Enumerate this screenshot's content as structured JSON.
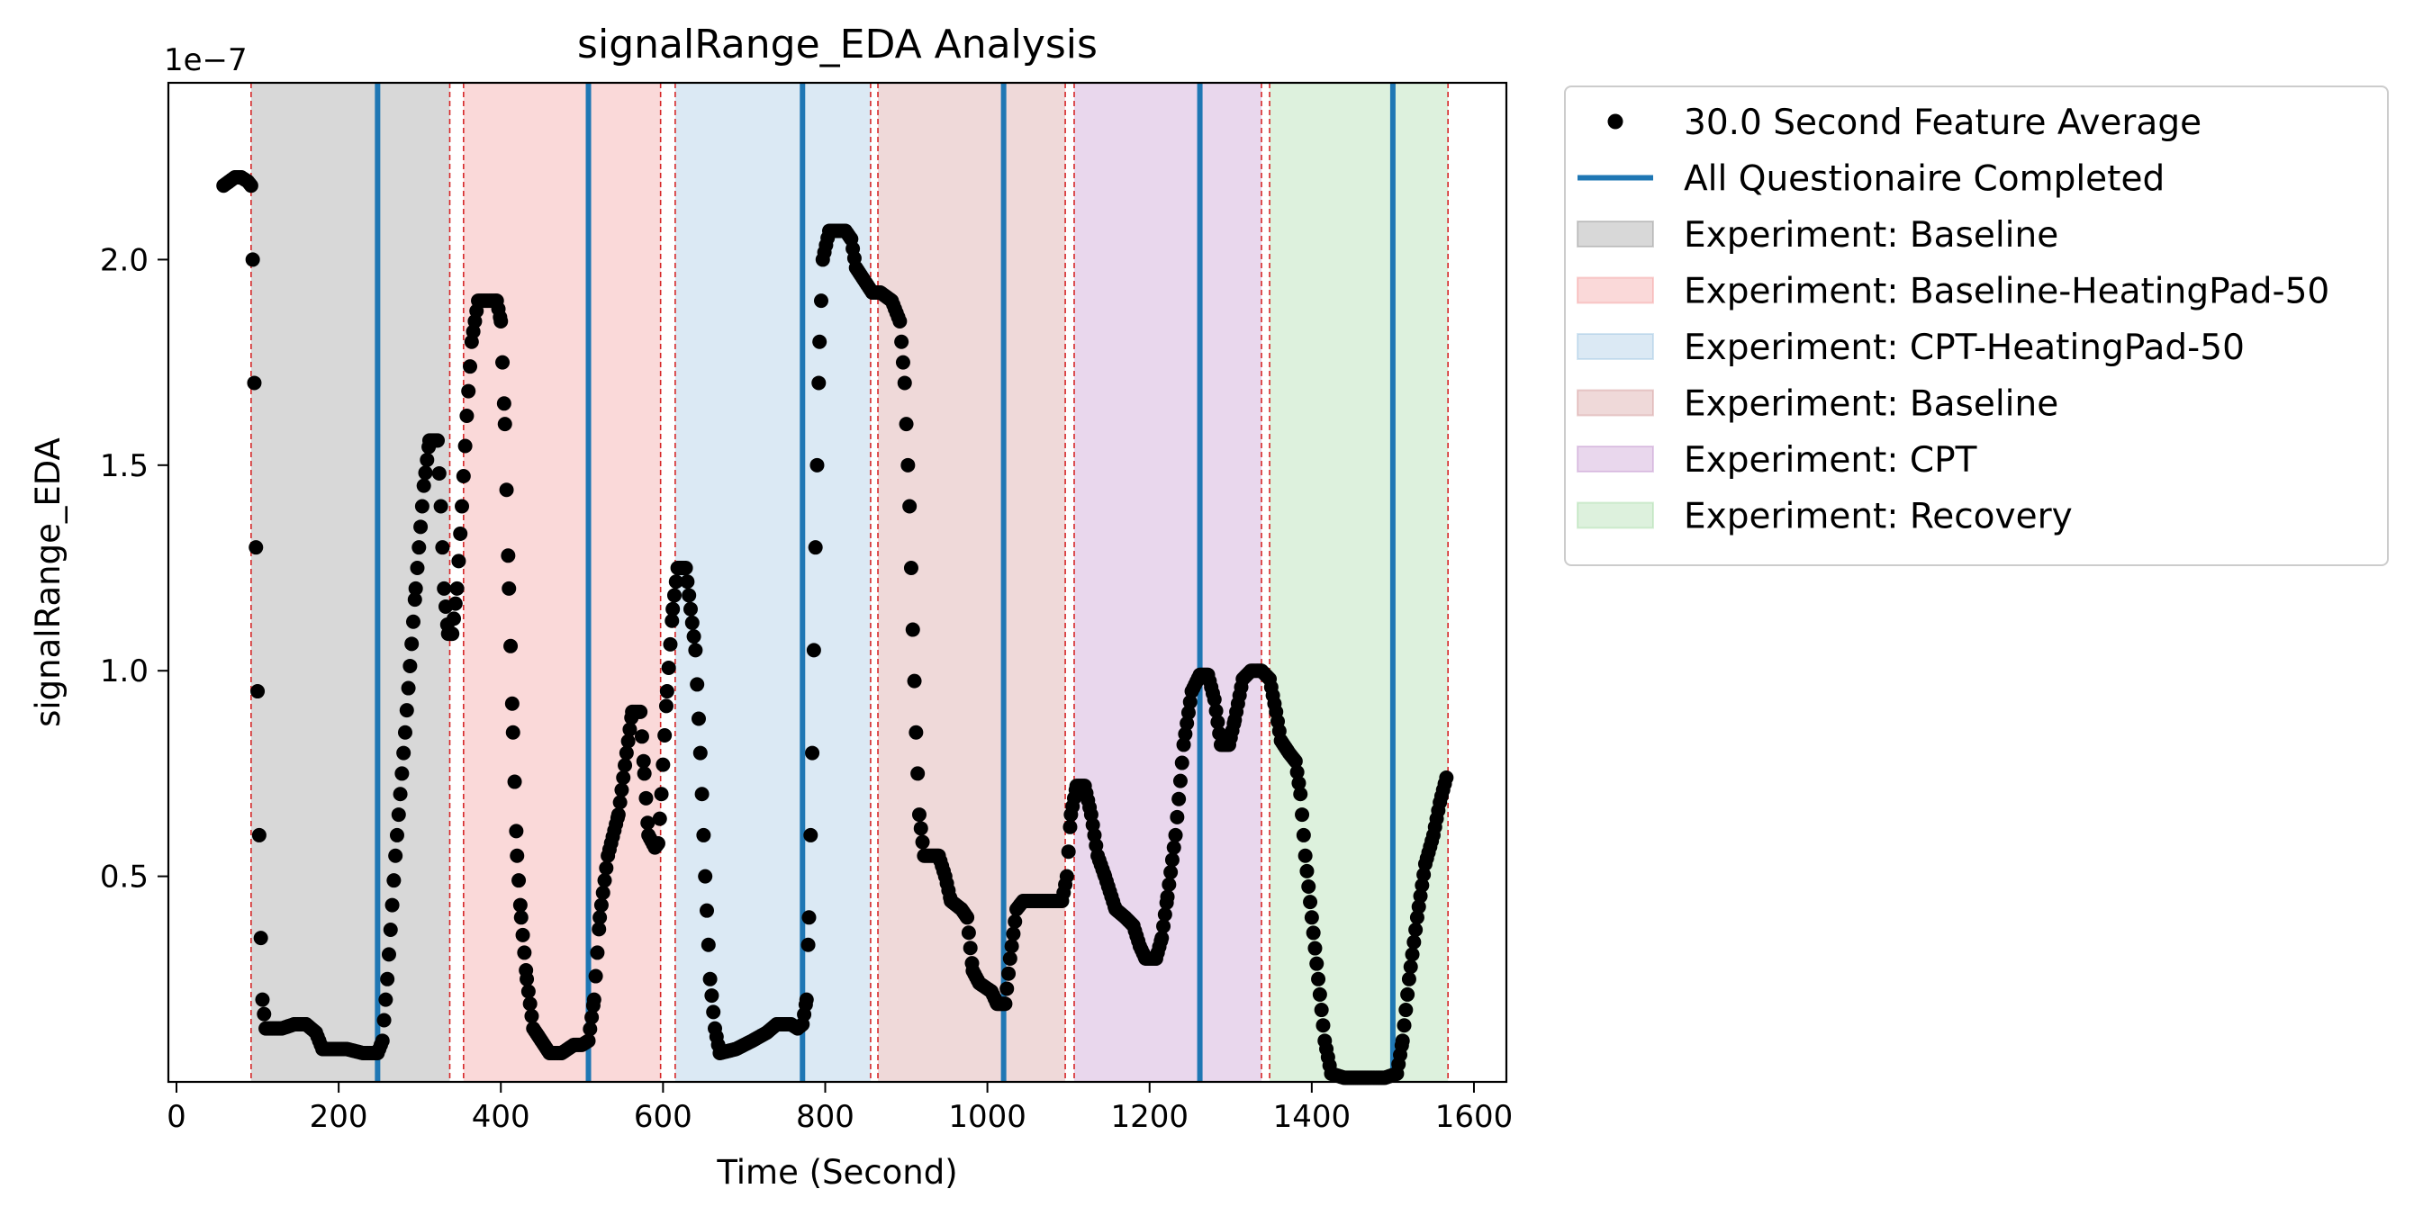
{
  "chart_data": {
    "type": "scatter",
    "title": "signalRange_EDA Analysis",
    "xlabel": "Time (Second)",
    "ylabel": "signalRange_EDA",
    "y_offset_text": "1e−7",
    "xlim": [
      -10,
      1640
    ],
    "ylim": [
      0.0,
      2.43
    ],
    "x_ticks": [
      0,
      200,
      400,
      600,
      800,
      1000,
      1200,
      1400,
      1600
    ],
    "y_ticks": [
      0.5,
      1.0,
      1.5,
      2.0
    ],
    "x_tick_labels": [
      "0",
      "200",
      "400",
      "600",
      "800",
      "1000",
      "1200",
      "1400",
      "1600"
    ],
    "y_tick_labels": [
      "0.5",
      "1.0",
      "1.5",
      "2.0"
    ],
    "colors": {
      "points": "#000000",
      "questionnaire_line": "#1f77b4",
      "boundary_line": "#d62728",
      "region_baseline_gray": "#7f7f7f",
      "region_heat": "#f08080",
      "region_cpt_heat": "#87b6d9",
      "region_baseline2": "#c98080",
      "region_cpt": "#b57bc4",
      "region_recovery": "#8fd18f"
    },
    "series": [
      {
        "name": "30.0 Second Feature Average",
        "anchors": [
          [
            58,
            2.18
          ],
          [
            65,
            2.19
          ],
          [
            72,
            2.2
          ],
          [
            80,
            2.2
          ],
          [
            88,
            2.19
          ],
          [
            92,
            2.18
          ],
          [
            94,
            2.0
          ],
          [
            96,
            1.7
          ],
          [
            98,
            1.3
          ],
          [
            100,
            0.95
          ],
          [
            102,
            0.6
          ],
          [
            104,
            0.35
          ],
          [
            106,
            0.2
          ],
          [
            110,
            0.13
          ],
          [
            130,
            0.13
          ],
          [
            145,
            0.14
          ],
          [
            160,
            0.14
          ],
          [
            172,
            0.12
          ],
          [
            180,
            0.08
          ],
          [
            210,
            0.08
          ],
          [
            230,
            0.07
          ],
          [
            248,
            0.07
          ],
          [
            254,
            0.1
          ],
          [
            260,
            0.25
          ],
          [
            270,
            0.55
          ],
          [
            282,
            0.85
          ],
          [
            295,
            1.2
          ],
          [
            305,
            1.45
          ],
          [
            312,
            1.56
          ],
          [
            322,
            1.56
          ],
          [
            326,
            1.4
          ],
          [
            330,
            1.2
          ],
          [
            335,
            1.09
          ],
          [
            340,
            1.09
          ],
          [
            346,
            1.2
          ],
          [
            352,
            1.4
          ],
          [
            358,
            1.62
          ],
          [
            364,
            1.8
          ],
          [
            372,
            1.9
          ],
          [
            395,
            1.9
          ],
          [
            400,
            1.85
          ],
          [
            405,
            1.6
          ],
          [
            410,
            1.2
          ],
          [
            415,
            0.85
          ],
          [
            420,
            0.55
          ],
          [
            425,
            0.4
          ],
          [
            432,
            0.25
          ],
          [
            440,
            0.13
          ],
          [
            450,
            0.1
          ],
          [
            460,
            0.07
          ],
          [
            475,
            0.07
          ],
          [
            490,
            0.09
          ],
          [
            500,
            0.09
          ],
          [
            508,
            0.1
          ],
          [
            515,
            0.2
          ],
          [
            522,
            0.4
          ],
          [
            532,
            0.55
          ],
          [
            545,
            0.65
          ],
          [
            555,
            0.8
          ],
          [
            562,
            0.9
          ],
          [
            572,
            0.9
          ],
          [
            577,
            0.75
          ],
          [
            582,
            0.6
          ],
          [
            590,
            0.57
          ],
          [
            594,
            0.58
          ],
          [
            598,
            0.7
          ],
          [
            605,
            0.95
          ],
          [
            612,
            1.15
          ],
          [
            618,
            1.25
          ],
          [
            628,
            1.25
          ],
          [
            634,
            1.15
          ],
          [
            640,
            1.05
          ],
          [
            646,
            0.8
          ],
          [
            652,
            0.5
          ],
          [
            658,
            0.25
          ],
          [
            664,
            0.13
          ],
          [
            670,
            0.07
          ],
          [
            690,
            0.08
          ],
          [
            710,
            0.1
          ],
          [
            728,
            0.12
          ],
          [
            740,
            0.14
          ],
          [
            758,
            0.14
          ],
          [
            766,
            0.13
          ],
          [
            772,
            0.14
          ],
          [
            777,
            0.2
          ],
          [
            780,
            0.4
          ],
          [
            784,
            0.8
          ],
          [
            788,
            1.3
          ],
          [
            793,
            1.8
          ],
          [
            797,
            2.0
          ],
          [
            805,
            2.07
          ],
          [
            825,
            2.07
          ],
          [
            832,
            2.05
          ],
          [
            838,
            1.98
          ],
          [
            848,
            1.95
          ],
          [
            858,
            1.92
          ],
          [
            868,
            1.92
          ],
          [
            882,
            1.9
          ],
          [
            892,
            1.85
          ],
          [
            898,
            1.7
          ],
          [
            904,
            1.4
          ],
          [
            908,
            1.1
          ],
          [
            912,
            0.85
          ],
          [
            916,
            0.65
          ],
          [
            922,
            0.55
          ],
          [
            940,
            0.55
          ],
          [
            948,
            0.5
          ],
          [
            955,
            0.44
          ],
          [
            968,
            0.42
          ],
          [
            975,
            0.4
          ],
          [
            982,
            0.27
          ],
          [
            990,
            0.24
          ],
          [
            1005,
            0.22
          ],
          [
            1012,
            0.19
          ],
          [
            1022,
            0.19
          ],
          [
            1028,
            0.3
          ],
          [
            1036,
            0.42
          ],
          [
            1044,
            0.44
          ],
          [
            1068,
            0.44
          ],
          [
            1080,
            0.44
          ],
          [
            1092,
            0.44
          ],
          [
            1098,
            0.5
          ],
          [
            1103,
            0.65
          ],
          [
            1110,
            0.72
          ],
          [
            1120,
            0.72
          ],
          [
            1128,
            0.65
          ],
          [
            1136,
            0.55
          ],
          [
            1145,
            0.5
          ],
          [
            1158,
            0.42
          ],
          [
            1170,
            0.4
          ],
          [
            1180,
            0.38
          ],
          [
            1188,
            0.33
          ],
          [
            1195,
            0.3
          ],
          [
            1208,
            0.3
          ],
          [
            1215,
            0.35
          ],
          [
            1222,
            0.45
          ],
          [
            1232,
            0.6
          ],
          [
            1242,
            0.82
          ],
          [
            1252,
            0.95
          ],
          [
            1262,
            0.99
          ],
          [
            1272,
            0.99
          ],
          [
            1280,
            0.93
          ],
          [
            1288,
            0.82
          ],
          [
            1298,
            0.82
          ],
          [
            1305,
            0.88
          ],
          [
            1315,
            0.98
          ],
          [
            1325,
            1.0
          ],
          [
            1338,
            1.0
          ],
          [
            1348,
            0.98
          ],
          [
            1356,
            0.9
          ],
          [
            1362,
            0.83
          ],
          [
            1372,
            0.8
          ],
          [
            1380,
            0.78
          ],
          [
            1386,
            0.7
          ],
          [
            1392,
            0.55
          ],
          [
            1400,
            0.4
          ],
          [
            1408,
            0.25
          ],
          [
            1416,
            0.1
          ],
          [
            1424,
            0.02
          ],
          [
            1440,
            0.01
          ],
          [
            1460,
            0.01
          ],
          [
            1478,
            0.01
          ],
          [
            1490,
            0.01
          ],
          [
            1505,
            0.02
          ],
          [
            1512,
            0.1
          ],
          [
            1520,
            0.25
          ],
          [
            1530,
            0.4
          ],
          [
            1540,
            0.53
          ],
          [
            1550,
            0.6
          ],
          [
            1558,
            0.68
          ],
          [
            1566,
            0.74
          ]
        ]
      }
    ],
    "questionnaire_times": [
      248,
      508,
      772,
      1020,
      1262,
      1500
    ],
    "regions": [
      {
        "name": "Experiment: Baseline",
        "start": 92,
        "end": 337,
        "color": "#7f7f7f",
        "alpha": 0.3
      },
      {
        "name": "Experiment: Baseline-HeatingPad-50",
        "start": 354,
        "end": 597,
        "color": "#f08080",
        "alpha": 0.3
      },
      {
        "name": "Experiment: CPT-HeatingPad-50",
        "start": 615,
        "end": 856,
        "color": "#87b6d9",
        "alpha": 0.3
      },
      {
        "name": "Experiment: Baseline",
        "start": 865,
        "end": 1096,
        "color": "#c98080",
        "alpha": 0.3
      },
      {
        "name": "Experiment: CPT",
        "start": 1107,
        "end": 1338,
        "color": "#b57bc4",
        "alpha": 0.3
      },
      {
        "name": "Experiment: Recovery",
        "start": 1348,
        "end": 1568,
        "color": "#8fd18f",
        "alpha": 0.3
      }
    ],
    "boundaries": [
      92,
      337,
      354,
      597,
      615,
      856,
      865,
      1096,
      1107,
      1338,
      1348,
      1568
    ],
    "legend": {
      "placement": "outside-upper-right",
      "entries": [
        {
          "label": "30.0 Second Feature Average",
          "kind": "marker",
          "color": "#000000"
        },
        {
          "label": "All Questionaire Completed",
          "kind": "line",
          "color": "#1f77b4"
        },
        {
          "label": "Experiment: Baseline",
          "kind": "patch",
          "color": "#7f7f7f"
        },
        {
          "label": "Experiment: Baseline-HeatingPad-50",
          "kind": "patch",
          "color": "#f08080"
        },
        {
          "label": "Experiment: CPT-HeatingPad-50",
          "kind": "patch",
          "color": "#87b6d9"
        },
        {
          "label": "Experiment: Baseline",
          "kind": "patch",
          "color": "#c98080"
        },
        {
          "label": "Experiment: CPT",
          "kind": "patch",
          "color": "#b57bc4"
        },
        {
          "label": "Experiment: Recovery",
          "kind": "patch",
          "color": "#8fd18f"
        }
      ]
    },
    "grid": false
  }
}
